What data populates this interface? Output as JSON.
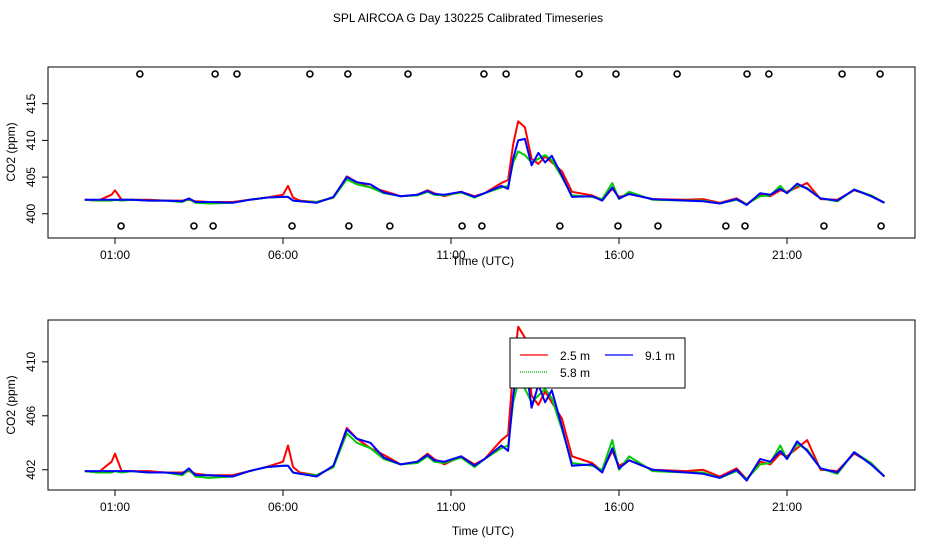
{
  "chart_data": {
    "type": "line",
    "title": "SPL AIRCOA G  Day 130225  Calibrated Timeseries",
    "xlabel": "Time (UTC)",
    "ylabel": "CO2 (ppm)",
    "xlim": [
      0,
      24
    ],
    "x_ticks": [
      1,
      6,
      11,
      16,
      21
    ],
    "x_tick_labels": [
      "01:00",
      "06:00",
      "11:00",
      "16:00",
      "21:00"
    ],
    "colors": {
      "2.5 m": "#ff0000",
      "5.8 m": "#00cc00",
      "9.1 m": "#0000ff"
    },
    "legend": {
      "entries": [
        "2.5 m",
        "9.1 m",
        "5.8 m"
      ],
      "placement": "top-center (bottom panel)"
    },
    "x": [
      0.1,
      0.5,
      0.9,
      1.0,
      1.2,
      1.5,
      2,
      2.5,
      3,
      3.2,
      3.4,
      3.8,
      4.5,
      5,
      5.5,
      6,
      6.15,
      6.3,
      6.5,
      7,
      7.5,
      7.9,
      8.2,
      8.6,
      9,
      9.5,
      10,
      10.3,
      10.5,
      10.8,
      11.3,
      11.7,
      12,
      12.5,
      12.7,
      12.85,
      13.0,
      13.2,
      13.4,
      13.6,
      13.8,
      14.0,
      14.3,
      14.6,
      15.2,
      15.5,
      15.8,
      16.0,
      16.3,
      17,
      18,
      18.5,
      19,
      19.5,
      19.8,
      20.2,
      20.5,
      20.8,
      21,
      21.3,
      21.6,
      22,
      22.5,
      23,
      23.5,
      23.9
    ],
    "series": [
      {
        "name": "2.5 m",
        "values": [
          401.9,
          401.8,
          402.6,
          403.2,
          401.9,
          401.9,
          401.9,
          401.8,
          401.8,
          401.9,
          401.7,
          401.6,
          401.6,
          401.9,
          402.2,
          402.6,
          403.8,
          402.2,
          401.8,
          401.6,
          402.2,
          405.1,
          404.3,
          403.6,
          403.1,
          402.4,
          402.6,
          403.2,
          402.8,
          402.4,
          403.0,
          402.4,
          402.8,
          404.2,
          404.6,
          409.5,
          412.6,
          411.8,
          407.5,
          406.8,
          407.8,
          407.0,
          405.8,
          403.0,
          402.5,
          401.9,
          403.4,
          402.3,
          402.7,
          402.0,
          401.9,
          402.0,
          401.5,
          402.1,
          401.3,
          402.6,
          402.4,
          403.2,
          403.0,
          403.6,
          404.2,
          402.0,
          401.9,
          403.2,
          402.5,
          401.5
        ]
      },
      {
        "name": "5.8 m",
        "values": [
          401.9,
          401.8,
          401.8,
          401.9,
          401.8,
          401.9,
          401.8,
          401.8,
          401.6,
          402.0,
          401.5,
          401.4,
          401.5,
          401.9,
          402.2,
          402.3,
          402.3,
          401.8,
          401.7,
          401.6,
          402.2,
          404.7,
          404.0,
          403.6,
          402.8,
          402.4,
          402.5,
          403.0,
          402.6,
          402.5,
          402.9,
          402.2,
          402.8,
          403.6,
          403.8,
          407.0,
          408.5,
          408.0,
          407.0,
          407.5,
          408.0,
          407.3,
          405.0,
          402.5,
          402.3,
          402.0,
          404.2,
          402.0,
          403.0,
          401.9,
          401.8,
          401.8,
          401.4,
          401.9,
          401.3,
          402.4,
          402.5,
          403.8,
          402.8,
          403.9,
          403.5,
          402.1,
          401.7,
          403.3,
          402.5,
          401.5
        ]
      },
      {
        "name": "9.1 m",
        "values": [
          401.9,
          401.9,
          401.9,
          401.9,
          401.9,
          401.9,
          401.8,
          401.8,
          401.7,
          402.1,
          401.6,
          401.6,
          401.5,
          401.9,
          402.2,
          402.3,
          402.3,
          401.8,
          401.7,
          401.5,
          402.3,
          405.0,
          404.3,
          404.0,
          402.9,
          402.4,
          402.6,
          403.1,
          402.7,
          402.6,
          403.0,
          402.3,
          402.8,
          403.8,
          403.4,
          407.5,
          410.0,
          410.2,
          406.6,
          408.3,
          407.0,
          407.9,
          405.2,
          402.3,
          402.4,
          401.8,
          403.6,
          402.1,
          402.7,
          402.0,
          401.8,
          401.7,
          401.4,
          402.0,
          401.2,
          402.8,
          402.6,
          403.4,
          402.8,
          404.1,
          403.4,
          402.1,
          401.8,
          403.3,
          402.4,
          401.5
        ]
      }
    ],
    "panels": [
      {
        "name": "top",
        "ylim": [
          396.7,
          420.0
        ],
        "y_ticks": [
          400,
          405,
          410,
          415
        ],
        "y_tick_labels": [
          "400",
          "405",
          "410",
          "415"
        ],
        "markers_top_times": [
          1.74,
          3.98,
          4.63,
          6.8,
          7.93,
          9.72,
          11.98,
          12.64,
          14.81,
          15.91,
          17.73,
          19.81,
          20.46,
          22.64,
          23.77
        ],
        "markers_bottom_times": [
          1.18,
          3.35,
          3.92,
          6.27,
          7.96,
          9.18,
          11.33,
          11.92,
          14.24,
          15.97,
          17.16,
          19.18,
          19.75,
          22.1,
          23.8
        ]
      },
      {
        "name": "bottom",
        "ylim": [
          400.5,
          413.1
        ],
        "y_ticks": [
          402,
          406,
          410
        ],
        "y_tick_labels": [
          "402",
          "406",
          "410"
        ]
      }
    ]
  }
}
